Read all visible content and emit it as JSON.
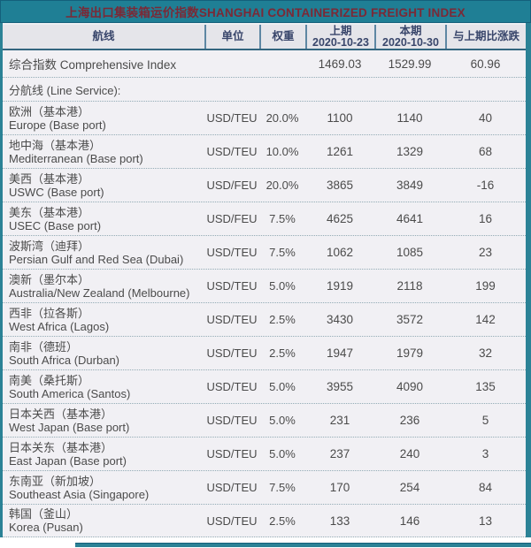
{
  "title": "上海出口集装箱运价指数SHANGHAI CONTAINERIZED FREIGHT INDEX",
  "header": {
    "route": "航线",
    "unit": "单位",
    "weight": "权重",
    "previous": {
      "label": "上期",
      "date": "2020-10-23"
    },
    "current": {
      "label": "本期",
      "date": "2020-10-30"
    },
    "change": "与上期比涨跌"
  },
  "comprehensive": {
    "name": "综合指数 Comprehensive Index",
    "previous": "1469.03",
    "current": "1529.99",
    "change": "60.96"
  },
  "section_label": "分航线 (Line Service):",
  "rows": [
    {
      "cn": "欧洲（基本港）",
      "en": "Europe (Base port)",
      "unit": "USD/TEU",
      "weight": "20.0%",
      "previous": "1100",
      "current": "1140",
      "change": "40"
    },
    {
      "cn": "地中海（基本港）",
      "en": "Mediterranean (Base port)",
      "unit": "USD/TEU",
      "weight": "10.0%",
      "previous": "1261",
      "current": "1329",
      "change": "68"
    },
    {
      "cn": "美西（基本港）",
      "en": "USWC (Base port)",
      "unit": "USD/FEU",
      "weight": "20.0%",
      "previous": "3865",
      "current": "3849",
      "change": "-16"
    },
    {
      "cn": "美东（基本港）",
      "en": "USEC (Base port)",
      "unit": "USD/FEU",
      "weight": "7.5%",
      "previous": "4625",
      "current": "4641",
      "change": "16"
    },
    {
      "cn": "波斯湾（迪拜）",
      "en": "Persian Gulf and Red Sea (Dubai)",
      "unit": "USD/TEU",
      "weight": "7.5%",
      "previous": "1062",
      "current": "1085",
      "change": "23"
    },
    {
      "cn": "澳新（墨尔本）",
      "en": "Australia/New Zealand (Melbourne)",
      "unit": "USD/TEU",
      "weight": "5.0%",
      "previous": "1919",
      "current": "2118",
      "change": "199"
    },
    {
      "cn": "西非（拉各斯）",
      "en": "West Africa (Lagos)",
      "unit": "USD/TEU",
      "weight": "2.5%",
      "previous": "3430",
      "current": "3572",
      "change": "142"
    },
    {
      "cn": "南非（德班）",
      "en": "South Africa (Durban)",
      "unit": "USD/TEU",
      "weight": "2.5%",
      "previous": "1947",
      "current": "1979",
      "change": "32"
    },
    {
      "cn": "南美（桑托斯）",
      "en": "South America (Santos)",
      "unit": "USD/TEU",
      "weight": "5.0%",
      "previous": "3955",
      "current": "4090",
      "change": "135"
    },
    {
      "cn": "日本关西（基本港）",
      "en": "West Japan (Base port)",
      "unit": "USD/TEU",
      "weight": "5.0%",
      "previous": "231",
      "current": "236",
      "change": "5"
    },
    {
      "cn": "日本关东（基本港）",
      "en": "East Japan (Base port)",
      "unit": "USD/TEU",
      "weight": "5.0%",
      "previous": "237",
      "current": "240",
      "change": "3"
    },
    {
      "cn": "东南亚（新加坡）",
      "en": "Southeast Asia (Singapore)",
      "unit": "USD/TEU",
      "weight": "7.5%",
      "previous": "170",
      "current": "254",
      "change": "84"
    },
    {
      "cn": "韩国（釜山）",
      "en": "Korea (Pusan)",
      "unit": "USD/TEU",
      "weight": "2.5%",
      "previous": "133",
      "current": "146",
      "change": "13"
    }
  ],
  "colors": {
    "teal": "#1f7f95",
    "title_text": "#7b2936",
    "header_bg": "#e5e5ea",
    "header_text": "#39466b",
    "row_bg": "#f1f0f4",
    "body_text": "#4b4b4b",
    "dotted_divider": "#93abb5"
  }
}
